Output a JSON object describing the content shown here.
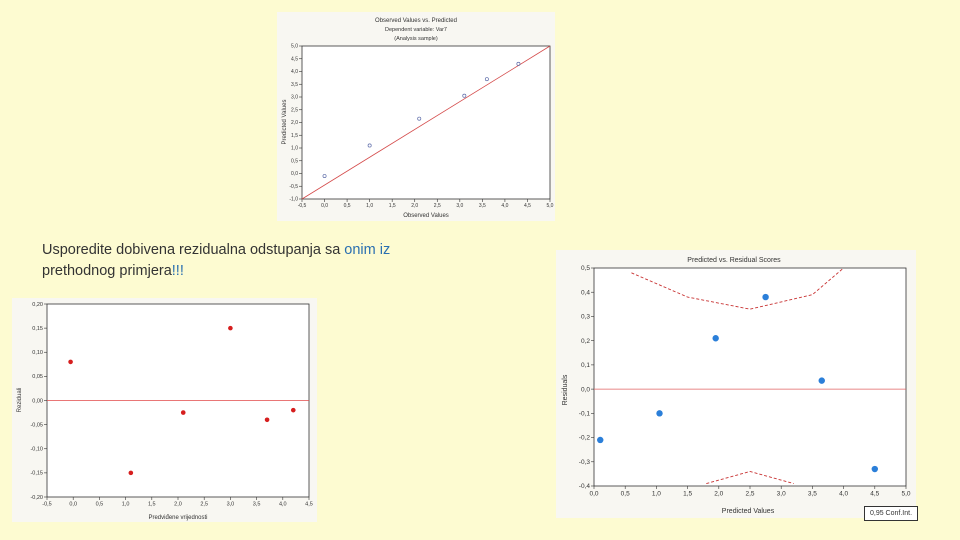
{
  "caption": {
    "part1": "Usporedite dobivena rezidualna odstupanja sa ",
    "part2": "onim iz",
    "part3": "prethodnog primjera",
    "part4": "!!!"
  },
  "top_chart": {
    "title": "Observed Values vs. Predicted",
    "subtitle1": "Dependent variable: Var7",
    "subtitle2": "(Analysis sample)",
    "xlabel": "Observed Values",
    "ylabel": "Predicted Values",
    "xticks": [
      "-0,5",
      "0,0",
      "0,5",
      "1,0",
      "1,5",
      "2,0",
      "2,5",
      "3,0",
      "3,5",
      "4,0",
      "4,5",
      "5,0"
    ],
    "yticks": [
      "5,0",
      "4,5",
      "4,0",
      "3,5",
      "3,0",
      "2,5",
      "2,0",
      "1,5",
      "1,0",
      "0,5",
      "0,0",
      "-0,5",
      "-1,0"
    ]
  },
  "left_chart": {
    "xlabel": "Predviđene vrijednosti",
    "ylabel": "Reziduali",
    "xticks": [
      "-0,5",
      "0,0",
      "0,5",
      "1,0",
      "1,5",
      "2,0",
      "2,5",
      "3,0",
      "3,5",
      "4,0",
      "4,5"
    ],
    "yticks": [
      "0,20",
      "0,15",
      "0,10",
      "0,05",
      "0,00",
      "-0,05",
      "-0,10",
      "-0,15",
      "-0,20"
    ]
  },
  "right_chart": {
    "title": "Predicted vs. Residual Scores",
    "xlabel": "Predicted Values",
    "ylabel": "Residuals",
    "xticks": [
      "0,0",
      "0,5",
      "1,0",
      "1,5",
      "2,0",
      "2,5",
      "3,0",
      "3,5",
      "4,0",
      "4,5",
      "5,0"
    ],
    "yticks": [
      "0,5",
      "0,4",
      "0,3",
      "0,2",
      "0,1",
      "0,0",
      "-0,1",
      "-0,2",
      "-0,3",
      "-0,4"
    ],
    "badge": "0,95 Conf.Int."
  },
  "chart_data": [
    {
      "type": "scatter",
      "title": "Observed Values vs. Predicted",
      "xlabel": "Observed Values",
      "ylabel": "Predicted Values",
      "xlim": [
        -0.5,
        5.0
      ],
      "ylim": [
        -1.0,
        5.0
      ],
      "grid": false,
      "series": [
        {
          "values": [
            [
              0.0,
              -0.1
            ],
            [
              1.0,
              1.1
            ],
            [
              2.1,
              2.15
            ],
            [
              3.1,
              3.05
            ],
            [
              3.6,
              3.7
            ],
            [
              4.3,
              4.3
            ]
          ]
        }
      ],
      "line": [
        [
          -0.5,
          -1.0
        ],
        [
          5.0,
          5.0
        ]
      ],
      "colors": {
        "points": "#5b6aa8",
        "line": "#d44a4a"
      }
    },
    {
      "type": "scatter",
      "xlabel": "Predviđene vrijednosti",
      "ylabel": "Reziduali",
      "xlim": [
        -0.5,
        4.5
      ],
      "ylim": [
        -0.2,
        0.2
      ],
      "grid": false,
      "series": [
        {
          "values": [
            [
              -0.05,
              0.08
            ],
            [
              1.1,
              -0.15
            ],
            [
              2.1,
              -0.025
            ],
            [
              3.0,
              0.15
            ],
            [
              3.7,
              -0.04
            ],
            [
              4.2,
              -0.02
            ]
          ]
        }
      ],
      "reference_line": 0.0,
      "colors": {
        "points": "#d61e1e",
        "line": "#e24848"
      }
    },
    {
      "type": "scatter",
      "title": "Predicted vs. Residual Scores",
      "xlabel": "Predicted Values",
      "ylabel": "Residuals",
      "xlim": [
        0.0,
        5.0
      ],
      "ylim": [
        -0.4,
        0.5
      ],
      "grid": false,
      "series": [
        {
          "values": [
            [
              0.1,
              -0.21
            ],
            [
              1.05,
              -0.1
            ],
            [
              1.95,
              0.21
            ],
            [
              2.75,
              0.38
            ],
            [
              3.65,
              0.035
            ],
            [
              4.5,
              -0.33
            ]
          ]
        }
      ],
      "reference_line": 0.0,
      "confidence_band": {
        "upper": [
          [
            0.6,
            0.48
          ],
          [
            1.5,
            0.38
          ],
          [
            2.5,
            0.33
          ],
          [
            3.5,
            0.39
          ],
          [
            4.0,
            0.5
          ]
        ],
        "lower": [
          [
            1.8,
            -0.39
          ],
          [
            2.5,
            -0.34
          ],
          [
            3.2,
            -0.39
          ]
        ]
      },
      "colors": {
        "points": "#2b7fd9",
        "line": "#e06060",
        "band": "#c83232"
      }
    }
  ]
}
